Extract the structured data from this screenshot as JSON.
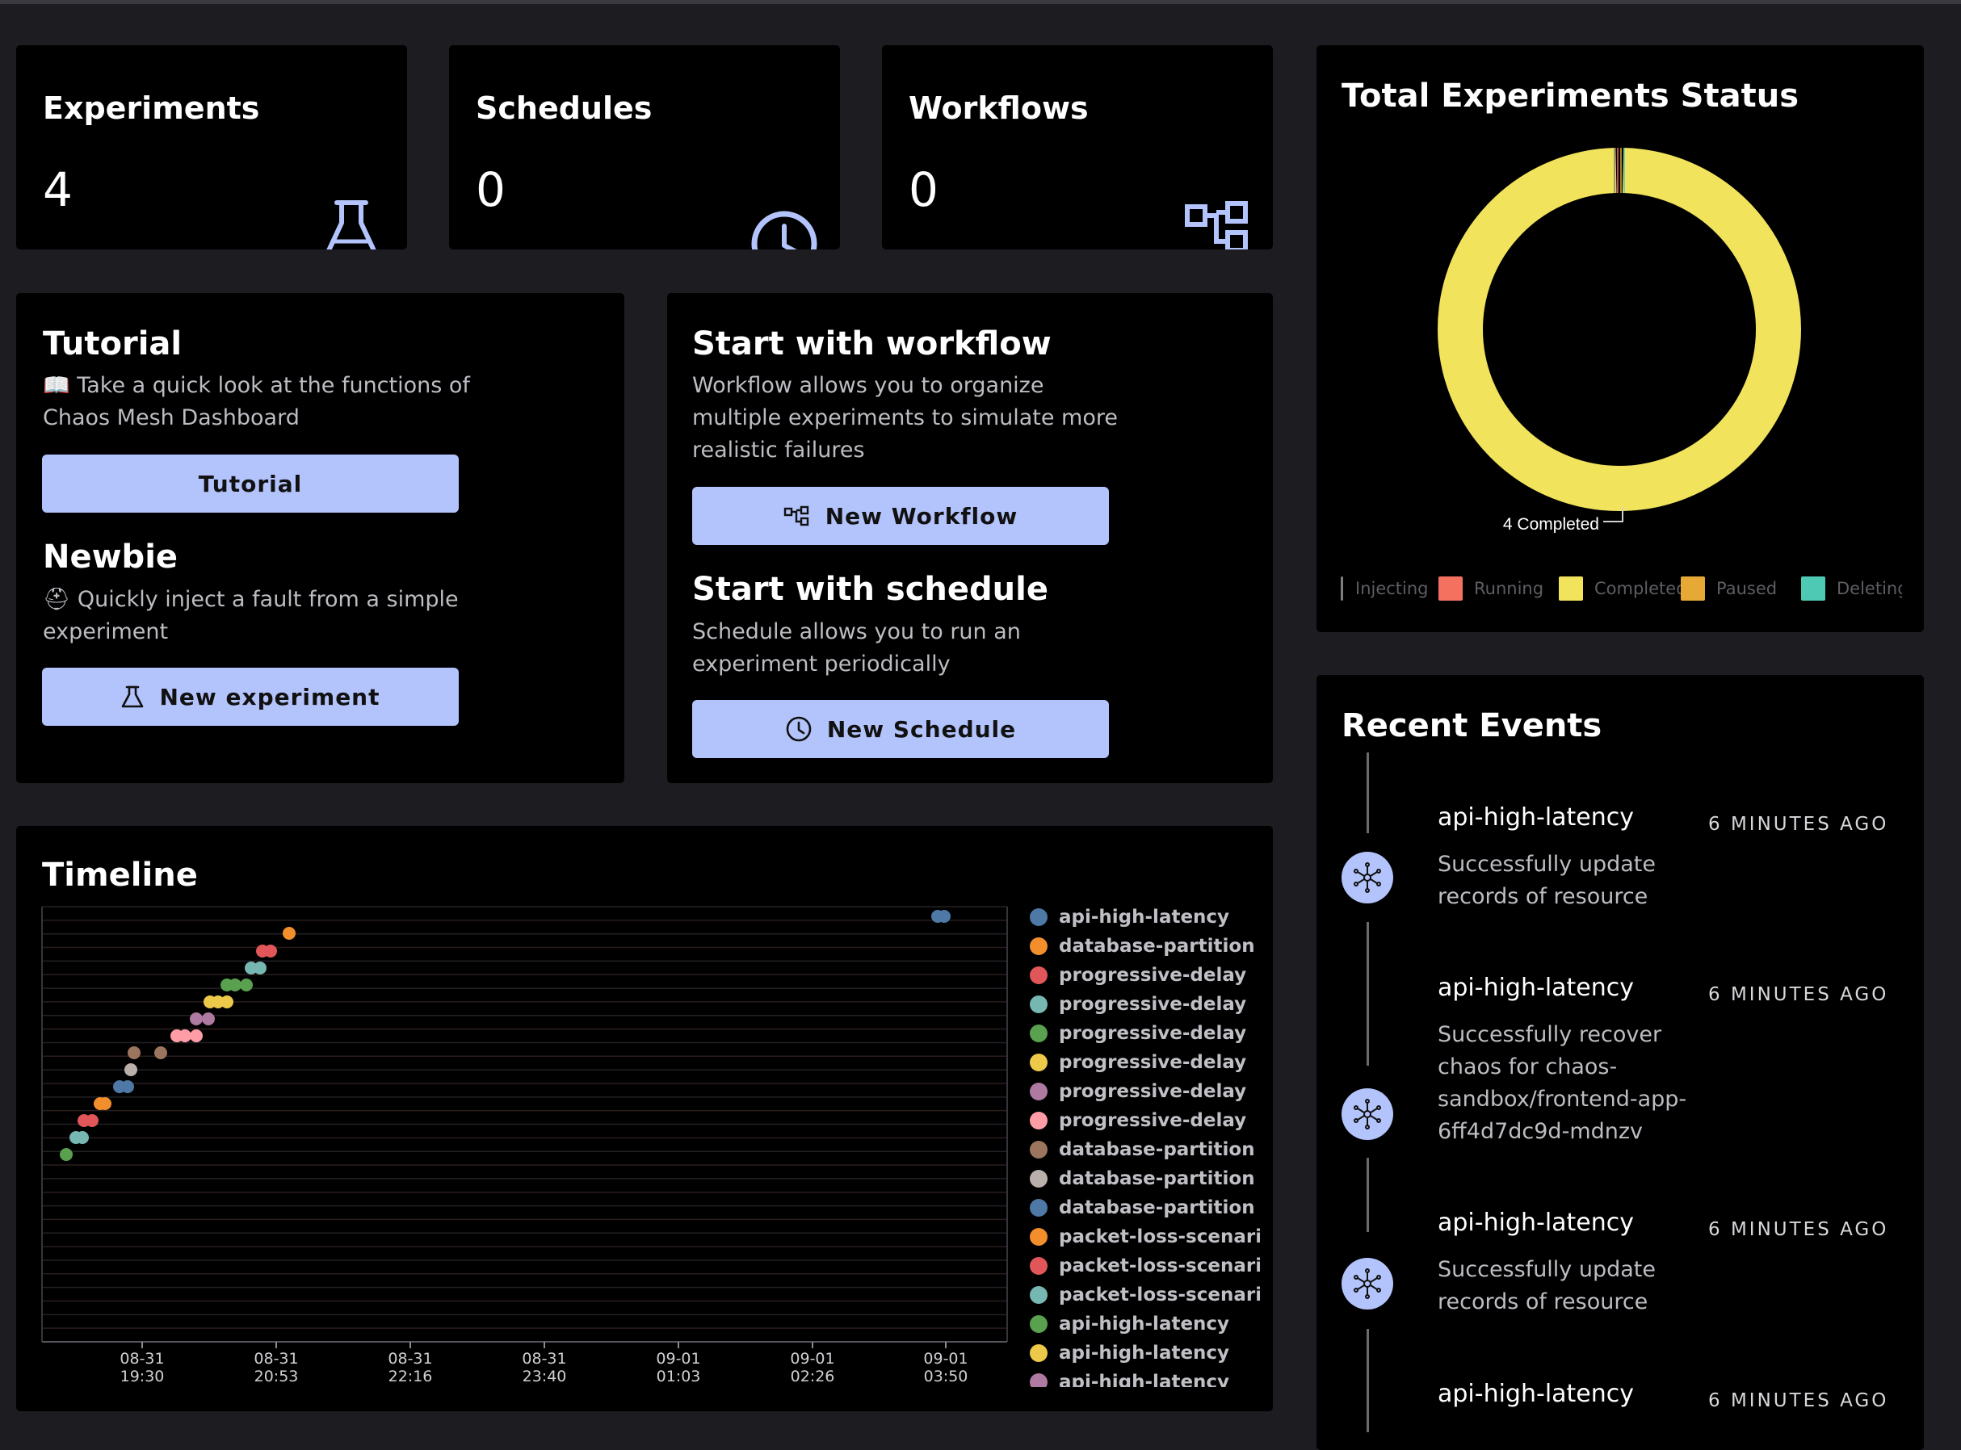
{
  "stats": [
    {
      "title": "Experiments",
      "value": "4",
      "icon": "flask-icon"
    },
    {
      "title": "Schedules",
      "value": "0",
      "icon": "clock-icon"
    },
    {
      "title": "Workflows",
      "value": "0",
      "icon": "workflow-icon"
    }
  ],
  "tutorial": {
    "title": "Tutorial",
    "desc": "📖 Take a quick look at the functions of Chaos Mesh Dashboard",
    "button": "Tutorial"
  },
  "newbie": {
    "title": "Newbie",
    "desc": "⛑ Quickly inject a fault from a simple experiment",
    "button": "New experiment"
  },
  "workflow": {
    "title": "Start with workflow",
    "desc": "Workflow allows you to organize multiple experiments to simulate more realistic failures",
    "button": "New Workflow"
  },
  "schedule": {
    "title": "Start with schedule",
    "desc": "Schedule allows you to run an experiment periodically",
    "button": "New Schedule"
  },
  "status": {
    "title": "Total Experiments Status",
    "annotation": "4 Completed",
    "legend": [
      {
        "label": "Injecting",
        "color": "#7f7f7f"
      },
      {
        "label": "Running",
        "color": "#f4715f"
      },
      {
        "label": "Completed",
        "color": "#f1e35c"
      },
      {
        "label": "Paused",
        "color": "#e6a935"
      },
      {
        "label": "Deleting",
        "color": "#4ec9b4"
      }
    ]
  },
  "chart_data": {
    "type": "pie",
    "title": "Total Experiments Status",
    "categories": [
      "Injecting",
      "Running",
      "Completed",
      "Paused",
      "Deleting"
    ],
    "values": [
      0,
      0,
      4,
      0,
      0
    ],
    "legend": "bottom"
  },
  "timeline": {
    "title": "Timeline",
    "ticks": [
      {
        "date": "08-31",
        "time": "19:30"
      },
      {
        "date": "08-31",
        "time": "20:53"
      },
      {
        "date": "08-31",
        "time": "22:16"
      },
      {
        "date": "08-31",
        "time": "23:40"
      },
      {
        "date": "09-01",
        "time": "01:03"
      },
      {
        "date": "09-01",
        "time": "02:26"
      },
      {
        "date": "09-01",
        "time": "03:50"
      }
    ],
    "legend": [
      {
        "label": "api-high-latency",
        "color": "#4e79a7"
      },
      {
        "label": "database-partition",
        "color": "#f28e2c"
      },
      {
        "label": "progressive-delay",
        "color": "#e15759"
      },
      {
        "label": "progressive-delay",
        "color": "#76b7b2"
      },
      {
        "label": "progressive-delay",
        "color": "#59a14f"
      },
      {
        "label": "progressive-delay",
        "color": "#edc949"
      },
      {
        "label": "progressive-delay",
        "color": "#af7aa1"
      },
      {
        "label": "progressive-delay",
        "color": "#ff9da7"
      },
      {
        "label": "database-partition",
        "color": "#9c755f"
      },
      {
        "label": "database-partition",
        "color": "#bab0ab"
      },
      {
        "label": "database-partition",
        "color": "#4e79a7"
      },
      {
        "label": "packet-loss-scenario",
        "color": "#f28e2c"
      },
      {
        "label": "packet-loss-scenario",
        "color": "#e15759"
      },
      {
        "label": "packet-loss-scenario",
        "color": "#76b7b2"
      },
      {
        "label": "api-high-latency",
        "color": "#59a14f"
      },
      {
        "label": "api-high-latency",
        "color": "#edc949"
      },
      {
        "label": "api-high-latency",
        "color": "#af7aa1"
      }
    ]
  },
  "events": {
    "title": "Recent Events",
    "items": [
      {
        "name": "api-high-latency",
        "time": "6 MINUTES AGO",
        "message": "Successfully update records of resource"
      },
      {
        "name": "api-high-latency",
        "time": "6 MINUTES AGO",
        "message": "Successfully recover chaos for chaos-sandbox/frontend-app-6ff4d7dc9d-mdnzv"
      },
      {
        "name": "api-high-latency",
        "time": "6 MINUTES AGO",
        "message": "Successfully update records of resource"
      },
      {
        "name": "api-high-latency",
        "time": "6 MINUTES AGO",
        "message": ""
      }
    ]
  }
}
